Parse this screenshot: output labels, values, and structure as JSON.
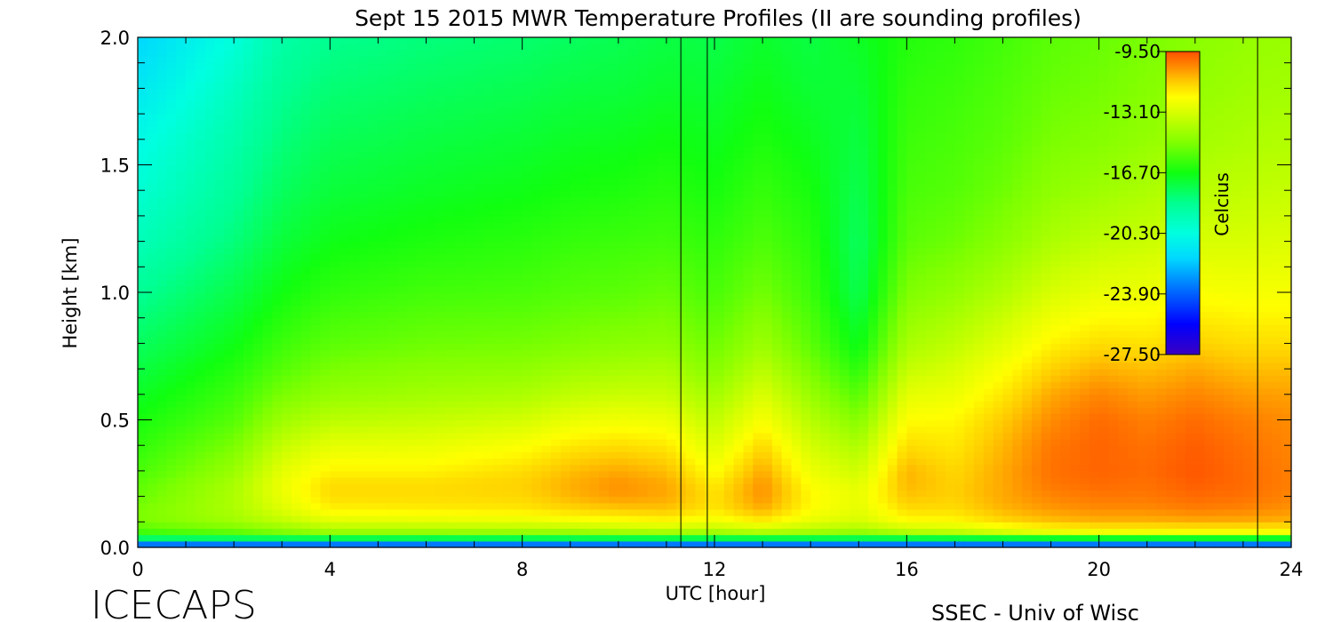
{
  "chart_data": {
    "type": "heatmap",
    "title": "Sept 15 2015 MWR Temperature Profiles (II are sounding profiles)",
    "xlabel": "UTC [hour]",
    "ylabel": "Height [km]",
    "xlim": [
      0,
      24
    ],
    "ylim": [
      0,
      2.0
    ],
    "x_ticks": [
      "0",
      "4",
      "8",
      "12",
      "16",
      "20",
      "24"
    ],
    "y_ticks": [
      "0.0",
      "0.5",
      "1.0",
      "1.5",
      "2.0"
    ],
    "colorbar": {
      "label": "Celcius",
      "ticks": [
        "-9.50",
        "-13.10",
        "-16.70",
        "-20.30",
        "-23.90",
        "-27.50"
      ],
      "range": [
        -27.5,
        -9.5
      ],
      "colormap": [
        {
          "value": -27.5,
          "color": "#3a00c0"
        },
        {
          "value": -25.7,
          "color": "#0000ff"
        },
        {
          "value": -23.9,
          "color": "#0060ff"
        },
        {
          "value": -21.8,
          "color": "#00d8ff"
        },
        {
          "value": -20.3,
          "color": "#00ffe0"
        },
        {
          "value": -18.5,
          "color": "#00ff90"
        },
        {
          "value": -16.7,
          "color": "#10ff10"
        },
        {
          "value": -14.9,
          "color": "#80ff00"
        },
        {
          "value": -13.1,
          "color": "#d8ff00"
        },
        {
          "value": -12.2,
          "color": "#ffff00"
        },
        {
          "value": -11.3,
          "color": "#ffcc00"
        },
        {
          "value": -10.4,
          "color": "#ff8c00"
        },
        {
          "value": -9.5,
          "color": "#ff5000"
        }
      ]
    },
    "sounding_times_utc": [
      11.3,
      11.85,
      23.3
    ],
    "heights_km": [
      0.0,
      0.03,
      0.06,
      0.1,
      0.15,
      0.2,
      0.25,
      0.3,
      0.4,
      0.5,
      0.6,
      0.7,
      0.8,
      1.0,
      1.2,
      1.4,
      1.6,
      1.8,
      2.0
    ],
    "times_utc": [
      0,
      2,
      3,
      4,
      6,
      8,
      9,
      10,
      11,
      12,
      13,
      14,
      15,
      16,
      17,
      18,
      19,
      20,
      21,
      22,
      23,
      24
    ],
    "temperature_c": [
      [
        -27.0,
        -18.5,
        -16.0,
        -15.0,
        -15.0,
        -15.3,
        -15.5,
        -15.8,
        -16.2,
        -16.6,
        -17.0,
        -17.4,
        -17.8,
        -18.6,
        -19.4,
        -20.0,
        -20.5,
        -21.2,
        -21.8
      ],
      [
        -27.0,
        -18.5,
        -15.5,
        -14.3,
        -14.0,
        -14.0,
        -14.1,
        -14.4,
        -15.0,
        -15.6,
        -16.0,
        -16.4,
        -16.8,
        -17.5,
        -18.2,
        -18.7,
        -19.1,
        -19.6,
        -20.2
      ],
      [
        -27.0,
        -18.5,
        -15.0,
        -13.7,
        -13.0,
        -12.7,
        -12.6,
        -12.8,
        -13.5,
        -14.3,
        -15.0,
        -15.6,
        -16.0,
        -16.7,
        -17.3,
        -17.8,
        -18.2,
        -18.6,
        -19.0
      ],
      [
        -27.0,
        -18.5,
        -14.5,
        -13.0,
        -12.0,
        -11.6,
        -11.6,
        -12.0,
        -12.8,
        -13.7,
        -14.5,
        -15.0,
        -15.5,
        -16.2,
        -16.8,
        -17.3,
        -17.7,
        -18.1,
        -18.5
      ],
      [
        -27.0,
        -18.5,
        -14.5,
        -12.9,
        -11.9,
        -11.6,
        -11.6,
        -12.0,
        -12.7,
        -13.5,
        -14.2,
        -14.7,
        -15.2,
        -15.9,
        -16.5,
        -17.0,
        -17.4,
        -17.8,
        -18.2
      ],
      [
        -27.0,
        -18.5,
        -14.5,
        -12.8,
        -11.8,
        -11.5,
        -11.4,
        -11.6,
        -12.3,
        -13.2,
        -14.0,
        -14.6,
        -15.1,
        -15.8,
        -16.3,
        -16.8,
        -17.2,
        -17.6,
        -18.0
      ],
      [
        -27.0,
        -18.5,
        -14.5,
        -12.6,
        -11.5,
        -11.0,
        -10.9,
        -11.1,
        -11.8,
        -12.7,
        -13.6,
        -14.3,
        -14.9,
        -15.6,
        -16.1,
        -16.6,
        -17.0,
        -17.4,
        -17.8
      ],
      [
        -27.0,
        -18.5,
        -14.3,
        -12.4,
        -11.3,
        -10.6,
        -10.5,
        -10.8,
        -11.6,
        -12.5,
        -13.4,
        -14.1,
        -14.7,
        -15.5,
        -16.0,
        -16.5,
        -16.9,
        -17.3,
        -17.6
      ],
      [
        -27.0,
        -18.5,
        -14.2,
        -12.2,
        -11.2,
        -10.8,
        -10.8,
        -11.1,
        -11.8,
        -12.6,
        -13.4,
        -14.0,
        -14.6,
        -15.3,
        -15.9,
        -16.3,
        -16.7,
        -17.1,
        -17.4
      ],
      [
        -27.0,
        -18.5,
        -14.3,
        -12.6,
        -11.8,
        -11.7,
        -11.9,
        -12.3,
        -13.0,
        -13.6,
        -14.2,
        -14.8,
        -15.2,
        -15.8,
        -16.2,
        -16.6,
        -16.9,
        -17.2,
        -17.5
      ],
      [
        -27.0,
        -18.5,
        -14.0,
        -12.0,
        -10.9,
        -10.5,
        -10.5,
        -10.8,
        -11.5,
        -12.3,
        -13.0,
        -13.7,
        -14.3,
        -15.1,
        -15.7,
        -16.1,
        -16.5,
        -16.8,
        -17.1
      ],
      [
        -27.0,
        -18.5,
        -14.3,
        -12.8,
        -12.2,
        -12.1,
        -12.3,
        -12.6,
        -13.2,
        -13.8,
        -14.4,
        -15.0,
        -15.5,
        -16.0,
        -16.3,
        -16.6,
        -16.9,
        -17.2,
        -17.4
      ],
      [
        -27.0,
        -18.5,
        -14.6,
        -13.2,
        -12.8,
        -12.7,
        -12.9,
        -13.3,
        -14.0,
        -14.8,
        -15.6,
        -16.3,
        -16.9,
        -17.6,
        -17.8,
        -17.6,
        -17.4,
        -17.2,
        -17.0
      ],
      [
        -27.0,
        -18.5,
        -14.0,
        -12.3,
        -11.6,
        -11.2,
        -11.0,
        -11.0,
        -11.6,
        -12.2,
        -12.8,
        -13.5,
        -14.1,
        -14.9,
        -15.5,
        -15.8,
        -16.0,
        -16.2,
        -16.4
      ],
      [
        -27.0,
        -18.5,
        -13.8,
        -12.2,
        -11.6,
        -11.4,
        -11.4,
        -11.5,
        -11.8,
        -12.1,
        -12.6,
        -13.1,
        -13.6,
        -14.5,
        -15.2,
        -15.6,
        -15.8,
        -16.0,
        -16.2
      ],
      [
        -27.0,
        -18.5,
        -13.3,
        -11.6,
        -11.0,
        -10.8,
        -10.8,
        -10.8,
        -11.0,
        -11.3,
        -11.8,
        -12.3,
        -12.9,
        -13.9,
        -14.7,
        -15.2,
        -15.5,
        -15.7,
        -15.9
      ],
      [
        -27.0,
        -18.5,
        -12.8,
        -11.2,
        -10.6,
        -10.3,
        -10.1,
        -10.0,
        -10.1,
        -10.4,
        -10.8,
        -11.4,
        -12.0,
        -13.1,
        -14.0,
        -14.6,
        -15.0,
        -15.3,
        -15.5
      ],
      [
        -27.0,
        -18.5,
        -12.6,
        -11.0,
        -10.4,
        -10.1,
        -9.9,
        -9.8,
        -9.8,
        -9.9,
        -10.3,
        -10.9,
        -11.6,
        -12.7,
        -13.6,
        -14.3,
        -14.8,
        -15.1,
        -15.3
      ],
      [
        -27.0,
        -18.5,
        -12.6,
        -11.0,
        -10.4,
        -10.1,
        -10.0,
        -9.9,
        -10.0,
        -10.2,
        -10.6,
        -11.1,
        -11.7,
        -12.6,
        -13.4,
        -14.0,
        -14.5,
        -14.8,
        -15.0
      ],
      [
        -27.0,
        -18.5,
        -12.5,
        -10.9,
        -10.2,
        -9.9,
        -9.7,
        -9.6,
        -9.7,
        -9.9,
        -10.3,
        -10.8,
        -11.4,
        -12.3,
        -13.1,
        -13.7,
        -14.2,
        -14.5,
        -14.7
      ],
      [
        -27.0,
        -18.5,
        -12.5,
        -10.9,
        -10.3,
        -10.0,
        -9.9,
        -9.9,
        -10.0,
        -10.2,
        -10.6,
        -11.1,
        -11.6,
        -12.4,
        -13.1,
        -13.6,
        -14.0,
        -14.3,
        -14.5
      ],
      [
        -27.0,
        -18.5,
        -12.5,
        -11.0,
        -10.5,
        -10.3,
        -10.2,
        -10.2,
        -10.3,
        -10.4,
        -10.7,
        -11.1,
        -11.6,
        -12.4,
        -13.0,
        -13.5,
        -13.9,
        -14.2,
        -14.4
      ]
    ]
  },
  "branding": {
    "project": "ICECAPS",
    "credit": "SSEC - Univ of Wisc"
  }
}
